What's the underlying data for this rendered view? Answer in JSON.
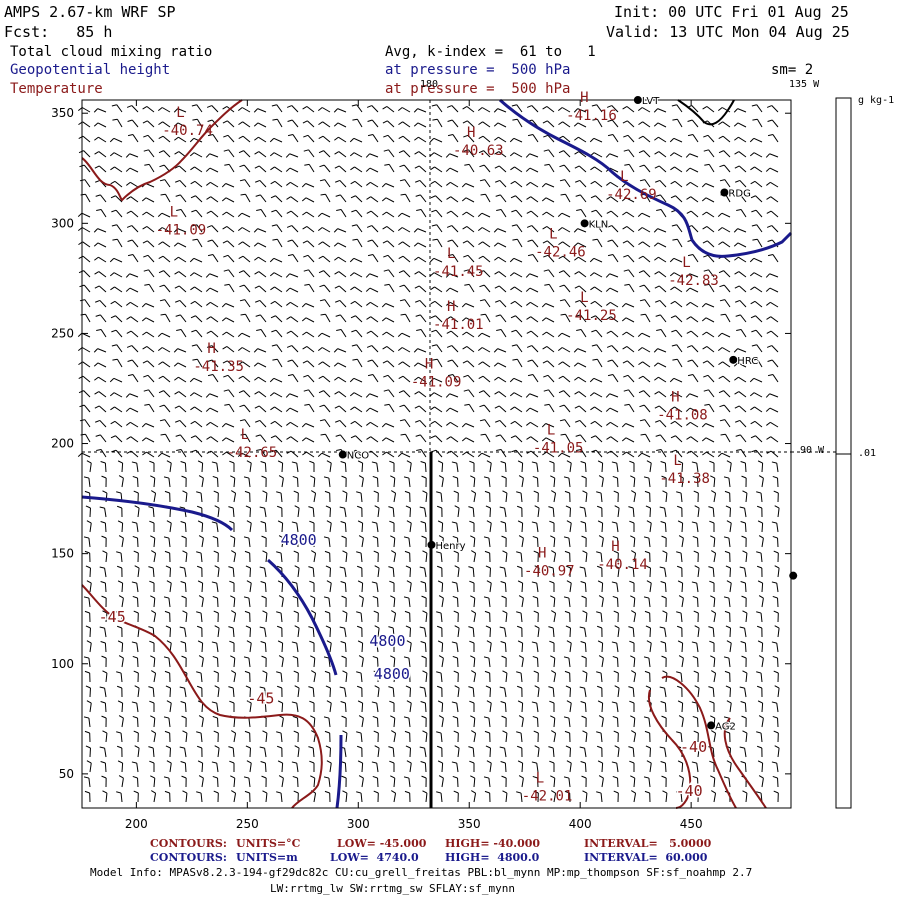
{
  "header": {
    "model": "AMPS 2.67-km WRF SP",
    "forecast": "Fcst:   85 h",
    "init": "Init: 00 UTC Fri 01 Aug 25",
    "valid": "Valid: 13 UTC Mon 04 Aug 25",
    "field1": "Total cloud mixing ratio",
    "field2": "Geopotential height",
    "field3": "Temperature",
    "avg": "Avg, k-index =  61 to   1",
    "pressure1": "at pressure =  500 hPa",
    "pressure2": "at pressure =  500 hPa",
    "sm": "sm= 2"
  },
  "map": {
    "lon_top_label": "180",
    "lon_right_top": "135 W",
    "lon_right_mid": "90 W",
    "x_ticks": [
      "200",
      "250",
      "300",
      "350",
      "400",
      "450"
    ],
    "y_ticks": [
      "350",
      "300",
      "250",
      "200",
      "150",
      "100",
      "50"
    ],
    "colorbar_unit": "g kg-1",
    "colorbar_value": ".01",
    "stations": [
      {
        "code": "LVT",
        "x": 426,
        "y": 356
      },
      {
        "code": "RDG",
        "x": 465,
        "y": 314
      },
      {
        "code": "KLN",
        "x": 402,
        "y": 300
      },
      {
        "code": "HRC",
        "x": 469,
        "y": 238
      },
      {
        "code": "NCO",
        "x": 293,
        "y": 195
      },
      {
        "code": "Henry",
        "x": 333,
        "y": 154
      },
      {
        "code": "AG2",
        "x": 459,
        "y": 72
      },
      {
        "code": "",
        "x": 496,
        "y": 140
      }
    ],
    "temp_labels": [
      {
        "letter": "L",
        "value": "-40.74",
        "x": 218,
        "y": 340
      },
      {
        "letter": "H",
        "value": "-40.63",
        "x": 349,
        "y": 331
      },
      {
        "letter": "H",
        "value": "-41.16",
        "x": 400,
        "y": 347
      },
      {
        "letter": "L",
        "value": "-42.69",
        "x": 418,
        "y": 311
      },
      {
        "letter": "L",
        "value": "-41.09",
        "x": 215,
        "y": 295
      },
      {
        "letter": "L",
        "value": "-42.46",
        "x": 386,
        "y": 285
      },
      {
        "letter": "L",
        "value": "-41.45",
        "x": 340,
        "y": 276
      },
      {
        "letter": "L",
        "value": "-42.83",
        "x": 446,
        "y": 272
      },
      {
        "letter": "L",
        "value": "-41.25",
        "x": 400,
        "y": 256
      },
      {
        "letter": "H",
        "value": "-41.01",
        "x": 340,
        "y": 252
      },
      {
        "letter": "H",
        "value": "-41.35",
        "x": 232,
        "y": 233
      },
      {
        "letter": "H",
        "value": "-41.09",
        "x": 330,
        "y": 226
      },
      {
        "letter": "H",
        "value": "-41.08",
        "x": 441,
        "y": 211
      },
      {
        "letter": "L",
        "value": "-42.65",
        "x": 247,
        "y": 194
      },
      {
        "letter": "L",
        "value": "-41.05",
        "x": 385,
        "y": 196
      },
      {
        "letter": "L",
        "value": "-41.38",
        "x": 442,
        "y": 182
      },
      {
        "letter": "H",
        "value": "-40.97",
        "x": 381,
        "y": 140
      },
      {
        "letter": "H",
        "value": "-40.14",
        "x": 414,
        "y": 143
      },
      {
        "letter": "L",
        "value": "-42.01",
        "x": 380,
        "y": 38
      }
    ],
    "contour_labels_temp": [
      {
        "text": "-45",
        "x": 183,
        "y": 119
      },
      {
        "text": "-45",
        "x": 250,
        "y": 82
      },
      {
        "text": "-40",
        "x": 445,
        "y": 60
      },
      {
        "text": "-40",
        "x": 443,
        "y": 40
      }
    ],
    "contour_labels_height": [
      {
        "text": "4800",
        "x": 265,
        "y": 154
      },
      {
        "text": "4800",
        "x": 305,
        "y": 108
      },
      {
        "text": "4800",
        "x": 307,
        "y": 93
      }
    ],
    "colors": {
      "height": "#1a1a8c",
      "temperature": "#8b1a1a",
      "barb": "#000000"
    }
  },
  "footer": {
    "line1": {
      "contours": "CONTOURS:",
      "units": "UNITS=°C",
      "low": "LOW= -45.000",
      "high": "HIGH= -40.000",
      "interval": "INTERVAL=   5.0000"
    },
    "line2": {
      "contours": "CONTOURS:",
      "units": "UNITS=m",
      "low": "LOW=  4740.0",
      "high": "HIGH=  4800.0",
      "interval": "INTERVAL=  60.000"
    },
    "model_info1": "Model Info: MPASv8.2.3-194-gf29dc82c CU:cu_grell_freitas PBL:bl_mynn MP:mp_thompson SF:sf_noahmp 2.7",
    "model_info2": "LW:rrtmg_lw SW:rrtmg_sw SFLAY:sf_mynn"
  }
}
